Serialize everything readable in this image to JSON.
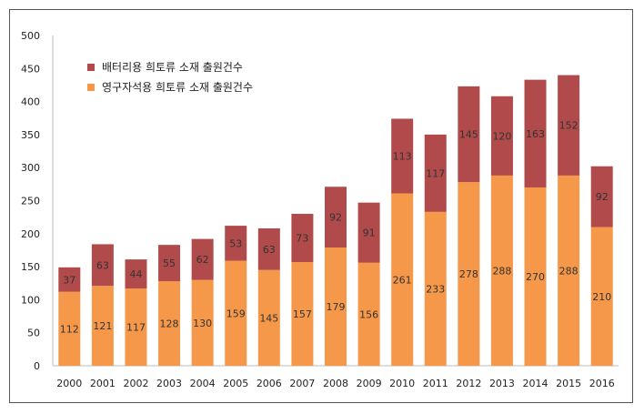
{
  "chart_data": {
    "type": "bar",
    "stacked": true,
    "categories": [
      "2000",
      "2001",
      "2002",
      "2003",
      "2004",
      "2005",
      "2006",
      "2007",
      "2008",
      "2009",
      "2010",
      "2011",
      "2012",
      "2013",
      "2014",
      "2015",
      "2016"
    ],
    "series": [
      {
        "name": "영구자석용 희토류 소재 출원건수",
        "color": "#F59849",
        "values": [
          112,
          121,
          117,
          128,
          130,
          159,
          145,
          157,
          179,
          156,
          261,
          233,
          278,
          288,
          270,
          288,
          210
        ]
      },
      {
        "name": "배터리용 희토류 소재 출원건수",
        "color": "#B14A4A",
        "values": [
          37,
          63,
          44,
          55,
          62,
          53,
          63,
          73,
          92,
          91,
          113,
          117,
          145,
          120,
          163,
          152,
          92
        ]
      }
    ],
    "ylim": [
      0,
      500
    ],
    "yticks": [
      0,
      50,
      100,
      150,
      200,
      250,
      300,
      350,
      400,
      450,
      500
    ],
    "legend": [
      "배터리용 희토류 소재 출원건수",
      "영구자석용 희토류 소재 출원건수"
    ],
    "legend_position": "top-left",
    "grid": false
  }
}
